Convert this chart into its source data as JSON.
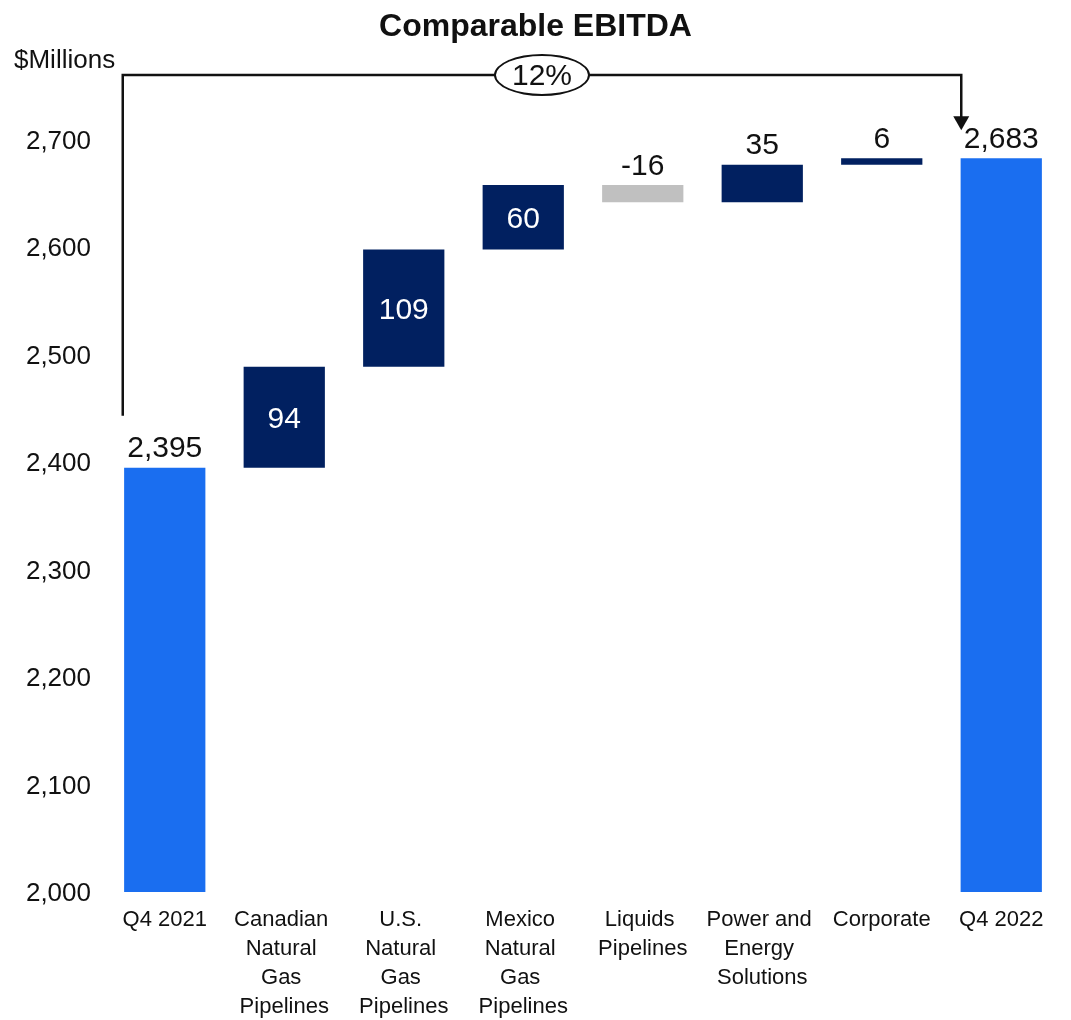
{
  "chart_data": {
    "type": "bar",
    "title": "Comparable EBITDA",
    "ylabel": "$Millions",
    "categories": [
      "Q4 2021",
      "Canadian Natural Gas Pipelines",
      "U.S. Natural Gas Pipelines",
      "Mexico Natural Gas Pipelines",
      "Liquids Pipelines",
      "Power and Energy Solutions",
      "Corporate",
      "Q4 2022"
    ],
    "base": [
      2000,
      2395,
      2489,
      2598,
      2658,
      2642,
      2677,
      2000
    ],
    "values": [
      395,
      94,
      109,
      60,
      -16,
      35,
      6,
      683
    ],
    "value_labels": [
      "2,395",
      "94",
      "109",
      "60",
      "-16",
      "35",
      "6",
      "2,683"
    ],
    "colors": [
      "#1a6ef0",
      "#012060",
      "#012060",
      "#012060",
      "#c0c0c0",
      "#012060",
      "#012060",
      "#1a6ef0"
    ],
    "ylim": [
      2000,
      2700
    ],
    "yticks": [
      {
        "value": 2000,
        "label": "2,000"
      },
      {
        "value": 2100,
        "label": "2,100"
      },
      {
        "value": 2200,
        "label": "2,200"
      },
      {
        "value": 2300,
        "label": "2,300"
      },
      {
        "value": 2400,
        "label": "2,400"
      },
      {
        "value": 2500,
        "label": "2,500"
      },
      {
        "value": 2600,
        "label": "2,600"
      },
      {
        "value": 2700,
        "label": "2,700"
      }
    ],
    "grid": false,
    "annotations": [
      "12%"
    ]
  }
}
